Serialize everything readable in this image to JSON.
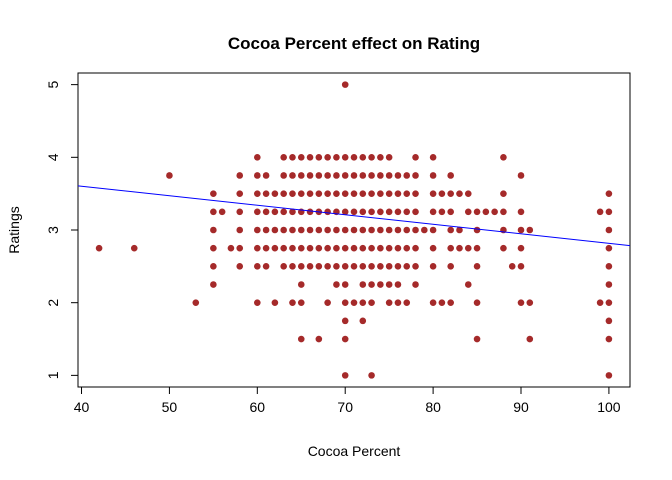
{
  "chart_data": {
    "type": "scatter",
    "title": "Cocoa Percent effect on Rating",
    "xlabel": "Cocoa Percent",
    "ylabel": "Ratings",
    "xlim": [
      39.6,
      102.4
    ],
    "ylim": [
      0.84,
      5.16
    ],
    "x_ticks": [
      40,
      50,
      60,
      70,
      80,
      90,
      100
    ],
    "y_ticks": [
      1,
      2,
      3,
      4,
      5
    ],
    "x_tick_labels": [
      "40",
      "50",
      "60",
      "70",
      "80",
      "90",
      "100"
    ],
    "y_tick_labels": [
      "1",
      "2",
      "3",
      "4",
      "5"
    ],
    "grid": false,
    "point_color": "#A52A2A",
    "trend_line_color": "#0000FF",
    "trend_line": {
      "intercept": 4.1258,
      "slope": -0.01309
    },
    "series": [
      {
        "points": [
          [
            42,
            2.75
          ],
          [
            46,
            2.75
          ],
          [
            50,
            3.75
          ],
          [
            53,
            2
          ],
          [
            55,
            3.5
          ],
          [
            55,
            3.25
          ],
          [
            55,
            3
          ],
          [
            55,
            2.75
          ],
          [
            55,
            2.5
          ],
          [
            55,
            2.25
          ],
          [
            56,
            3.25
          ],
          [
            57,
            2.75
          ],
          [
            58,
            3.75
          ],
          [
            58,
            3.5
          ],
          [
            58,
            3.25
          ],
          [
            58,
            3
          ],
          [
            58,
            2.75
          ],
          [
            58,
            2.5
          ],
          [
            60,
            4
          ],
          [
            60,
            3.75
          ],
          [
            60,
            3.5
          ],
          [
            60,
            3.25
          ],
          [
            60,
            3
          ],
          [
            60,
            2.75
          ],
          [
            60,
            2.5
          ],
          [
            60,
            2
          ],
          [
            61,
            3.75
          ],
          [
            61,
            3.5
          ],
          [
            61,
            3.25
          ],
          [
            61,
            3
          ],
          [
            61,
            2.75
          ],
          [
            61,
            2.5
          ],
          [
            62,
            3.5
          ],
          [
            62,
            3.25
          ],
          [
            62,
            3
          ],
          [
            62,
            2.75
          ],
          [
            62,
            2
          ],
          [
            63,
            4
          ],
          [
            63,
            3.75
          ],
          [
            63,
            3.5
          ],
          [
            63,
            3.25
          ],
          [
            63,
            3
          ],
          [
            63,
            2.75
          ],
          [
            63,
            2.5
          ],
          [
            64,
            4
          ],
          [
            64,
            3.75
          ],
          [
            64,
            3.5
          ],
          [
            64,
            3.25
          ],
          [
            64,
            3
          ],
          [
            64,
            2.75
          ],
          [
            64,
            2.5
          ],
          [
            64,
            2
          ],
          [
            65,
            4
          ],
          [
            65,
            3.75
          ],
          [
            65,
            3.5
          ],
          [
            65,
            3.25
          ],
          [
            65,
            3
          ],
          [
            65,
            2.75
          ],
          [
            65,
            2.5
          ],
          [
            65,
            2.25
          ],
          [
            65,
            2
          ],
          [
            65,
            1.5
          ],
          [
            66,
            4
          ],
          [
            66,
            3.75
          ],
          [
            66,
            3.5
          ],
          [
            66,
            3.25
          ],
          [
            66,
            3
          ],
          [
            66,
            2.75
          ],
          [
            66,
            2.5
          ],
          [
            67,
            4
          ],
          [
            67,
            3.75
          ],
          [
            67,
            3.5
          ],
          [
            67,
            3.25
          ],
          [
            67,
            3
          ],
          [
            67,
            2.75
          ],
          [
            67,
            2.5
          ],
          [
            67,
            1.5
          ],
          [
            68,
            4
          ],
          [
            68,
            3.75
          ],
          [
            68,
            3.5
          ],
          [
            68,
            3.25
          ],
          [
            68,
            3
          ],
          [
            68,
            2.75
          ],
          [
            68,
            2.5
          ],
          [
            68,
            2
          ],
          [
            69,
            4
          ],
          [
            69,
            3.75
          ],
          [
            69,
            3.5
          ],
          [
            69,
            3.25
          ],
          [
            69,
            3
          ],
          [
            69,
            2.75
          ],
          [
            69,
            2.5
          ],
          [
            69,
            2.25
          ],
          [
            70,
            5
          ],
          [
            70,
            4
          ],
          [
            70,
            3.75
          ],
          [
            70,
            3.5
          ],
          [
            70,
            3.25
          ],
          [
            70,
            3
          ],
          [
            70,
            2.75
          ],
          [
            70,
            2.5
          ],
          [
            70,
            2.25
          ],
          [
            70,
            2
          ],
          [
            70,
            1.75
          ],
          [
            70,
            1.5
          ],
          [
            70,
            1
          ],
          [
            71,
            4
          ],
          [
            71,
            3.75
          ],
          [
            71,
            3.5
          ],
          [
            71,
            3.25
          ],
          [
            71,
            3
          ],
          [
            71,
            2.75
          ],
          [
            71,
            2.5
          ],
          [
            71,
            2
          ],
          [
            72,
            4
          ],
          [
            72,
            3.75
          ],
          [
            72,
            3.5
          ],
          [
            72,
            3.25
          ],
          [
            72,
            3
          ],
          [
            72,
            2.75
          ],
          [
            72,
            2.5
          ],
          [
            72,
            2.25
          ],
          [
            72,
            2
          ],
          [
            72,
            1.75
          ],
          [
            73,
            4
          ],
          [
            73,
            3.75
          ],
          [
            73,
            3.5
          ],
          [
            73,
            3.25
          ],
          [
            73,
            3
          ],
          [
            73,
            2.75
          ],
          [
            73,
            2.5
          ],
          [
            73,
            2.25
          ],
          [
            73,
            2
          ],
          [
            73,
            1
          ],
          [
            74,
            4
          ],
          [
            74,
            3.75
          ],
          [
            74,
            3.5
          ],
          [
            74,
            3.25
          ],
          [
            74,
            3
          ],
          [
            74,
            2.75
          ],
          [
            74,
            2.5
          ],
          [
            74,
            2.25
          ],
          [
            75,
            4
          ],
          [
            75,
            3.75
          ],
          [
            75,
            3.5
          ],
          [
            75,
            3.25
          ],
          [
            75,
            3
          ],
          [
            75,
            2.75
          ],
          [
            75,
            2.5
          ],
          [
            75,
            2.25
          ],
          [
            75,
            2
          ],
          [
            76,
            3.75
          ],
          [
            76,
            3.5
          ],
          [
            76,
            3.25
          ],
          [
            76,
            3
          ],
          [
            76,
            2.75
          ],
          [
            76,
            2.5
          ],
          [
            76,
            2.25
          ],
          [
            76,
            2
          ],
          [
            77,
            3.75
          ],
          [
            77,
            3.5
          ],
          [
            77,
            3.25
          ],
          [
            77,
            3
          ],
          [
            77,
            2.75
          ],
          [
            77,
            2.5
          ],
          [
            77,
            2
          ],
          [
            78,
            4
          ],
          [
            78,
            3.75
          ],
          [
            78,
            3.5
          ],
          [
            78,
            3.25
          ],
          [
            78,
            3
          ],
          [
            78,
            2.75
          ],
          [
            78,
            2.5
          ],
          [
            78,
            2.25
          ],
          [
            79,
            3
          ],
          [
            80,
            4
          ],
          [
            80,
            3.75
          ],
          [
            80,
            3.5
          ],
          [
            80,
            3.25
          ],
          [
            80,
            3
          ],
          [
            80,
            2.75
          ],
          [
            80,
            2.5
          ],
          [
            80,
            2
          ],
          [
            81,
            3.5
          ],
          [
            81,
            3.25
          ],
          [
            81,
            2
          ],
          [
            82,
            3.75
          ],
          [
            82,
            3.5
          ],
          [
            82,
            3.25
          ],
          [
            82,
            3
          ],
          [
            82,
            2.75
          ],
          [
            82,
            2.5
          ],
          [
            82,
            2
          ],
          [
            83,
            3.5
          ],
          [
            83,
            3
          ],
          [
            83,
            2.75
          ],
          [
            84,
            3.5
          ],
          [
            84,
            3.25
          ],
          [
            84,
            2.75
          ],
          [
            84,
            2.25
          ],
          [
            85,
            3.25
          ],
          [
            85,
            3
          ],
          [
            85,
            2.75
          ],
          [
            85,
            2.5
          ],
          [
            85,
            2
          ],
          [
            85,
            1.5
          ],
          [
            86,
            3.25
          ],
          [
            87,
            3.25
          ],
          [
            88,
            4
          ],
          [
            88,
            3.5
          ],
          [
            88,
            3.25
          ],
          [
            88,
            3
          ],
          [
            88,
            2.75
          ],
          [
            89,
            2.5
          ],
          [
            90,
            3.75
          ],
          [
            90,
            3.25
          ],
          [
            90,
            3
          ],
          [
            90,
            2.75
          ],
          [
            90,
            2.5
          ],
          [
            90,
            2
          ],
          [
            91,
            3
          ],
          [
            91,
            2
          ],
          [
            91,
            1.5
          ],
          [
            99,
            3.25
          ],
          [
            99,
            2
          ],
          [
            100,
            3.5
          ],
          [
            100,
            3.25
          ],
          [
            100,
            3
          ],
          [
            100,
            2.75
          ],
          [
            100,
            2.5
          ],
          [
            100,
            2.25
          ],
          [
            100,
            2
          ],
          [
            100,
            1.75
          ],
          [
            100,
            1.5
          ],
          [
            100,
            1
          ]
        ]
      }
    ]
  }
}
